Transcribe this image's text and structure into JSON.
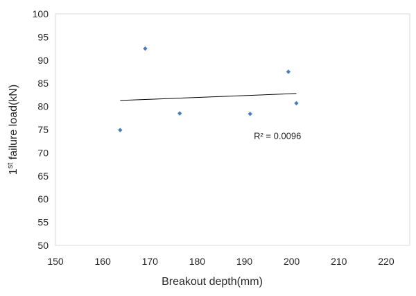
{
  "chart_data": {
    "type": "scatter",
    "xlabel": "Breakout depth(mm)",
    "ylabel": {
      "pre": "1",
      "sup": "st",
      "post": " failure load(kN)"
    },
    "xlim": [
      150,
      225
    ],
    "ylim": [
      50,
      100
    ],
    "x_ticks": [
      150,
      160,
      170,
      180,
      190,
      200,
      210,
      220
    ],
    "y_ticks": [
      50,
      55,
      60,
      65,
      70,
      75,
      80,
      85,
      90,
      95,
      100
    ],
    "grid": false,
    "legend": "none",
    "marker_color": "#4a7ebb",
    "points": [
      {
        "x": 163.7,
        "y": 74.9
      },
      {
        "x": 169.0,
        "y": 92.5
      },
      {
        "x": 176.3,
        "y": 78.5
      },
      {
        "x": 191.2,
        "y": 78.4
      },
      {
        "x": 199.3,
        "y": 87.5
      },
      {
        "x": 201.0,
        "y": 80.7
      }
    ],
    "trendline": {
      "x": [
        163.7,
        201.0
      ],
      "y": [
        81.3,
        82.8
      ],
      "color": "#000000"
    },
    "annotation": {
      "text": "R² = 0.0096",
      "x": 197,
      "y": 73
    }
  }
}
